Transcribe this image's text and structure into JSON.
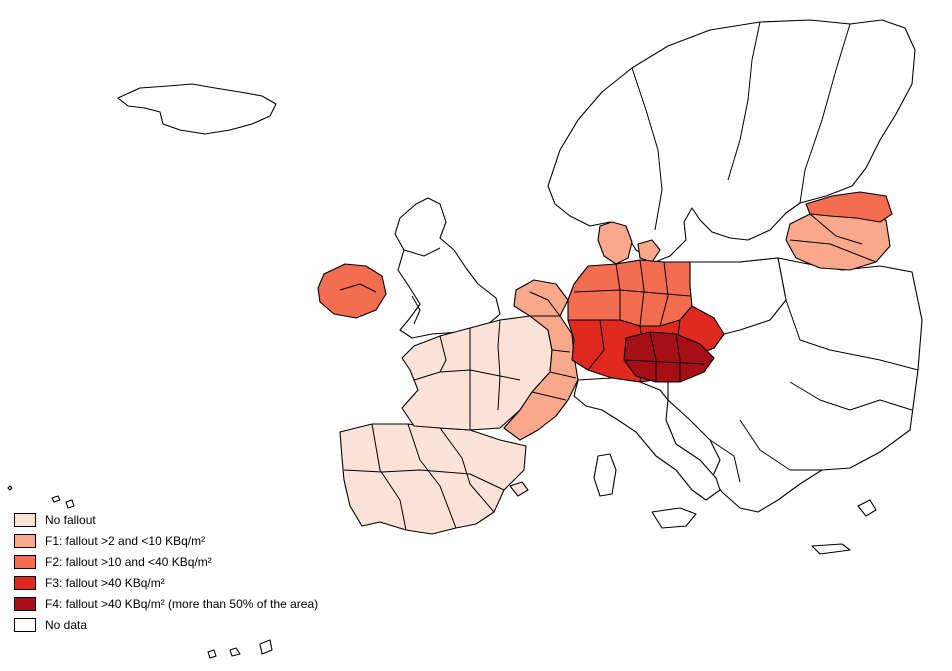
{
  "legend": {
    "items": [
      {
        "key": "none",
        "label": "No fallout",
        "color": "#fde2d7"
      },
      {
        "key": "f1",
        "label": "F1: fallout >2 and <10 KBq/m²",
        "color": "#f9a88c"
      },
      {
        "key": "f2",
        "label": "F2: fallout >10 and <40 KBq/m²",
        "color": "#f46d50"
      },
      {
        "key": "f3",
        "label": "F3: fallout >40 KBq/m²",
        "color": "#e02a1f"
      },
      {
        "key": "f4",
        "label": "F4:  fallout >40 KBq/m² (more than 50% of the area)",
        "color": "#a50f15"
      },
      {
        "key": "nodata",
        "label": "No data",
        "color": "#ffffff"
      }
    ]
  }
}
